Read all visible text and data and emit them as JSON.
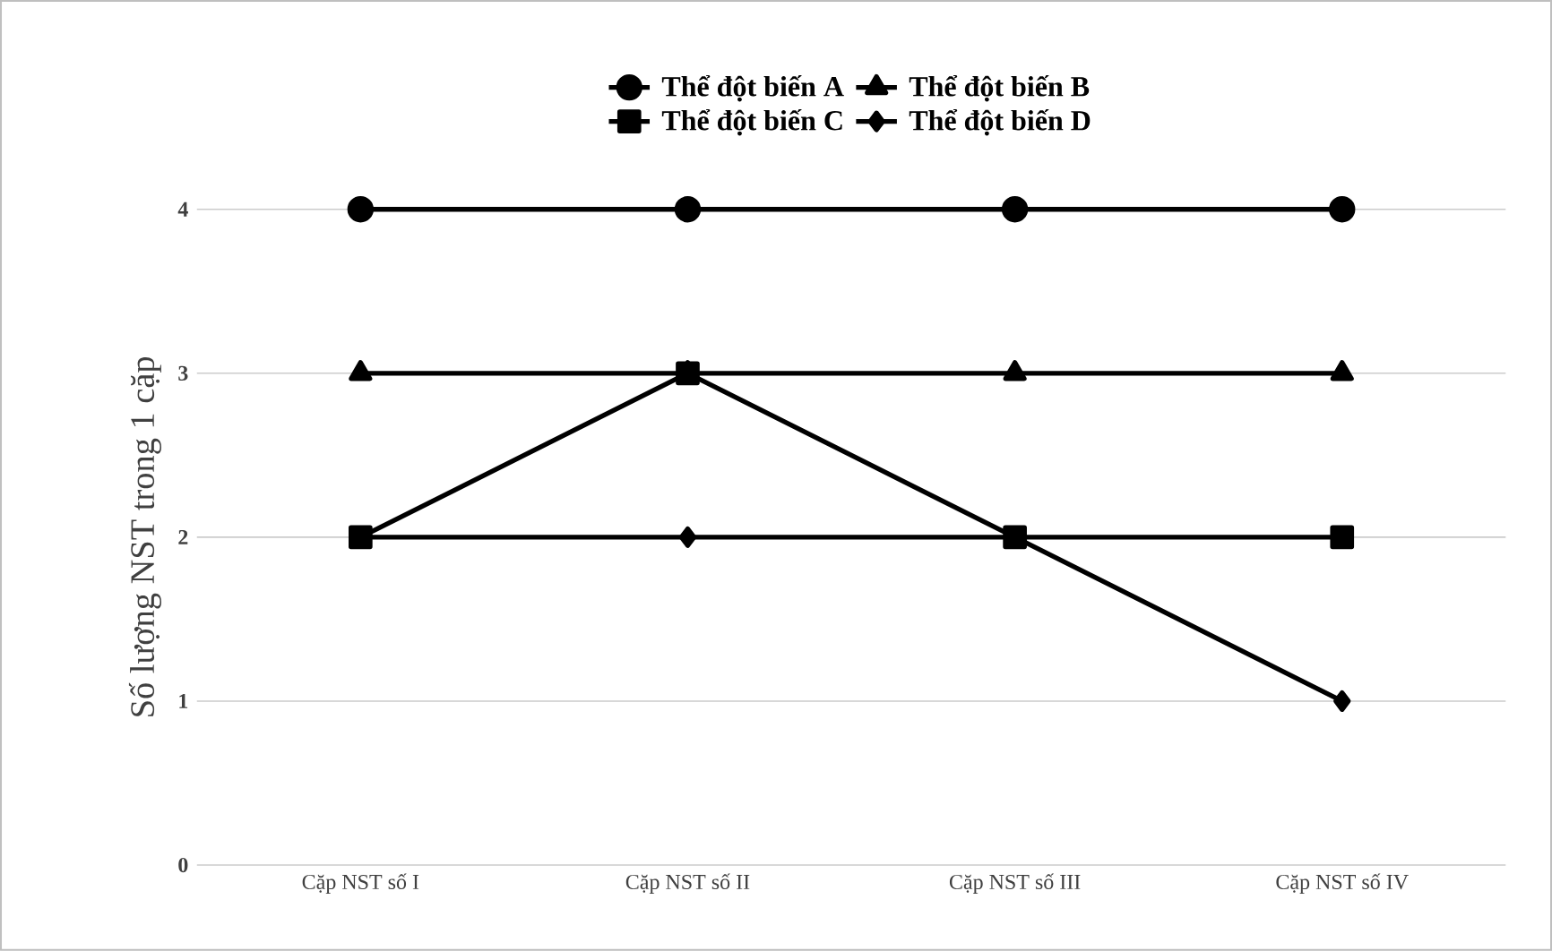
{
  "chart_data": {
    "type": "line",
    "ylabel": "Số lượng NST trong 1 cặp",
    "categories": [
      "Cặp NST số I",
      "Cặp NST số II",
      "Cặp NST số III",
      "Cặp NST số IV"
    ],
    "series": [
      {
        "name": "Thể đột biến A",
        "color": "#000000",
        "marker": "circle",
        "values": [
          4,
          4,
          4,
          4
        ]
      },
      {
        "name": "Thể đột biến B",
        "color": "#000000",
        "marker": "triangle",
        "values": [
          3,
          3,
          3,
          3
        ]
      },
      {
        "name": "Thể đột biến C",
        "color": "#000000",
        "marker": "square",
        "values": [
          2,
          3,
          2,
          2
        ]
      },
      {
        "name": "Thể đột biến D",
        "color": "#000000",
        "marker": "diamond",
        "values": [
          2,
          2,
          2,
          1
        ]
      }
    ],
    "ylim": [
      0,
      4
    ],
    "yticks": [
      0,
      1,
      2,
      3,
      4
    ],
    "grid": "y",
    "legend": "top",
    "line_style": "solid"
  }
}
